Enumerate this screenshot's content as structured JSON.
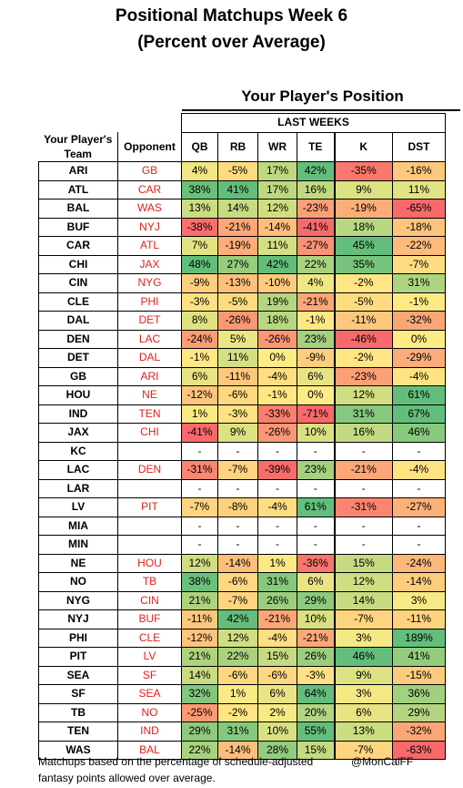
{
  "title_line1": "Positional Matchups Week 6",
  "title_line2": "(Percent over Average)",
  "position_heading": "Your Player's Position",
  "sub_heading": "LAST  WEEKS",
  "team_header": "Your Player's Team",
  "opponent_header": "Opponent",
  "positions": [
    "QB",
    "RB",
    "WR",
    "TE",
    "K",
    "DST"
  ],
  "rows": [
    {
      "team": "ARI",
      "opp": "GB",
      "vals": [
        "4%",
        "-5%",
        "17%",
        "42%",
        "-35%",
        "-16%"
      ]
    },
    {
      "team": "ATL",
      "opp": "CAR",
      "vals": [
        "38%",
        "41%",
        "17%",
        "16%",
        "9%",
        "11%"
      ]
    },
    {
      "team": "BAL",
      "opp": "WAS",
      "vals": [
        "13%",
        "14%",
        "12%",
        "-23%",
        "-19%",
        "-65%"
      ]
    },
    {
      "team": "BUF",
      "opp": "NYJ",
      "vals": [
        "-38%",
        "-21%",
        "-14%",
        "-41%",
        "18%",
        "-18%"
      ]
    },
    {
      "team": "CAR",
      "opp": "ATL",
      "vals": [
        "7%",
        "-19%",
        "11%",
        "-27%",
        "45%",
        "-22%"
      ]
    },
    {
      "team": "CHI",
      "opp": "JAX",
      "vals": [
        "48%",
        "27%",
        "42%",
        "22%",
        "35%",
        "-7%"
      ]
    },
    {
      "team": "CIN",
      "opp": "NYG",
      "vals": [
        "-9%",
        "-13%",
        "-10%",
        "4%",
        "-2%",
        "31%"
      ]
    },
    {
      "team": "CLE",
      "opp": "PHI",
      "vals": [
        "-3%",
        "-5%",
        "19%",
        "-21%",
        "-5%",
        "-1%"
      ]
    },
    {
      "team": "DAL",
      "opp": "DET",
      "vals": [
        "8%",
        "-26%",
        "18%",
        "-1%",
        "-11%",
        "-32%"
      ]
    },
    {
      "team": "DEN",
      "opp": "LAC",
      "vals": [
        "-24%",
        "5%",
        "-26%",
        "23%",
        "-46%",
        "0%"
      ]
    },
    {
      "team": "DET",
      "opp": "DAL",
      "vals": [
        "-1%",
        "11%",
        "0%",
        "-9%",
        "-2%",
        "-29%"
      ]
    },
    {
      "team": "GB",
      "opp": "ARI",
      "vals": [
        "6%",
        "-11%",
        "-4%",
        "6%",
        "-23%",
        "-4%"
      ]
    },
    {
      "team": "HOU",
      "opp": "NE",
      "vals": [
        "-12%",
        "-6%",
        "-1%",
        "0%",
        "12%",
        "61%"
      ]
    },
    {
      "team": "IND",
      "opp": "TEN",
      "vals": [
        "1%",
        "-3%",
        "-33%",
        "-71%",
        "31%",
        "67%"
      ]
    },
    {
      "team": "JAX",
      "opp": "CHI",
      "vals": [
        "-41%",
        "9%",
        "-26%",
        "10%",
        "16%",
        "46%"
      ]
    },
    {
      "team": "KC",
      "opp": "",
      "vals": [
        "-",
        "-",
        "-",
        "-",
        "-",
        "-"
      ]
    },
    {
      "team": "LAC",
      "opp": "DEN",
      "vals": [
        "-31%",
        "-7%",
        "-39%",
        "23%",
        "-21%",
        "-4%"
      ]
    },
    {
      "team": "LAR",
      "opp": "",
      "vals": [
        "-",
        "-",
        "-",
        "-",
        "-",
        "-"
      ]
    },
    {
      "team": "LV",
      "opp": "PIT",
      "vals": [
        "-7%",
        "-8%",
        "-4%",
        "61%",
        "-31%",
        "-27%"
      ]
    },
    {
      "team": "MIA",
      "opp": "",
      "vals": [
        "-",
        "-",
        "-",
        "-",
        "-",
        "-"
      ]
    },
    {
      "team": "MIN",
      "opp": "",
      "vals": [
        "-",
        "-",
        "-",
        "-",
        "-",
        "-"
      ]
    },
    {
      "team": "NE",
      "opp": "HOU",
      "vals": [
        "12%",
        "-14%",
        "1%",
        "-36%",
        "15%",
        "-24%"
      ]
    },
    {
      "team": "NO",
      "opp": "TB",
      "vals": [
        "38%",
        "-6%",
        "31%",
        "6%",
        "12%",
        "-14%"
      ]
    },
    {
      "team": "NYG",
      "opp": "CIN",
      "vals": [
        "21%",
        "-7%",
        "26%",
        "29%",
        "14%",
        "3%"
      ]
    },
    {
      "team": "NYJ",
      "opp": "BUF",
      "vals": [
        "-11%",
        "42%",
        "-21%",
        "10%",
        "-7%",
        "-11%"
      ]
    },
    {
      "team": "PHI",
      "opp": "CLE",
      "vals": [
        "-12%",
        "12%",
        "-4%",
        "-21%",
        "3%",
        "189%"
      ]
    },
    {
      "team": "PIT",
      "opp": "LV",
      "vals": [
        "21%",
        "22%",
        "15%",
        "26%",
        "46%",
        "41%"
      ]
    },
    {
      "team": "SEA",
      "opp": "SF",
      "vals": [
        "14%",
        "-6%",
        "-6%",
        "-3%",
        "9%",
        "-15%"
      ]
    },
    {
      "team": "SF",
      "opp": "SEA",
      "vals": [
        "32%",
        "1%",
        "6%",
        "64%",
        "3%",
        "36%"
      ]
    },
    {
      "team": "TB",
      "opp": "NO",
      "vals": [
        "-25%",
        "-2%",
        "2%",
        "20%",
        "6%",
        "29%"
      ]
    },
    {
      "team": "TEN",
      "opp": "IND",
      "vals": [
        "29%",
        "31%",
        "10%",
        "55%",
        "13%",
        "-32%"
      ]
    },
    {
      "team": "WAS",
      "opp": "BAL",
      "vals": [
        "22%",
        "-14%",
        "28%",
        "15%",
        "-7%",
        "-63%"
      ]
    }
  ],
  "footer_note": "Matchups based on the percentage of schedule-adjusted fantasy points allowed over average.",
  "credit": "@MonCalFF",
  "colors": {
    "negative": "#f8696b",
    "neutral": "#ffeb84",
    "positive": "#63be7b",
    "opponent_text": "#e0201c"
  }
}
